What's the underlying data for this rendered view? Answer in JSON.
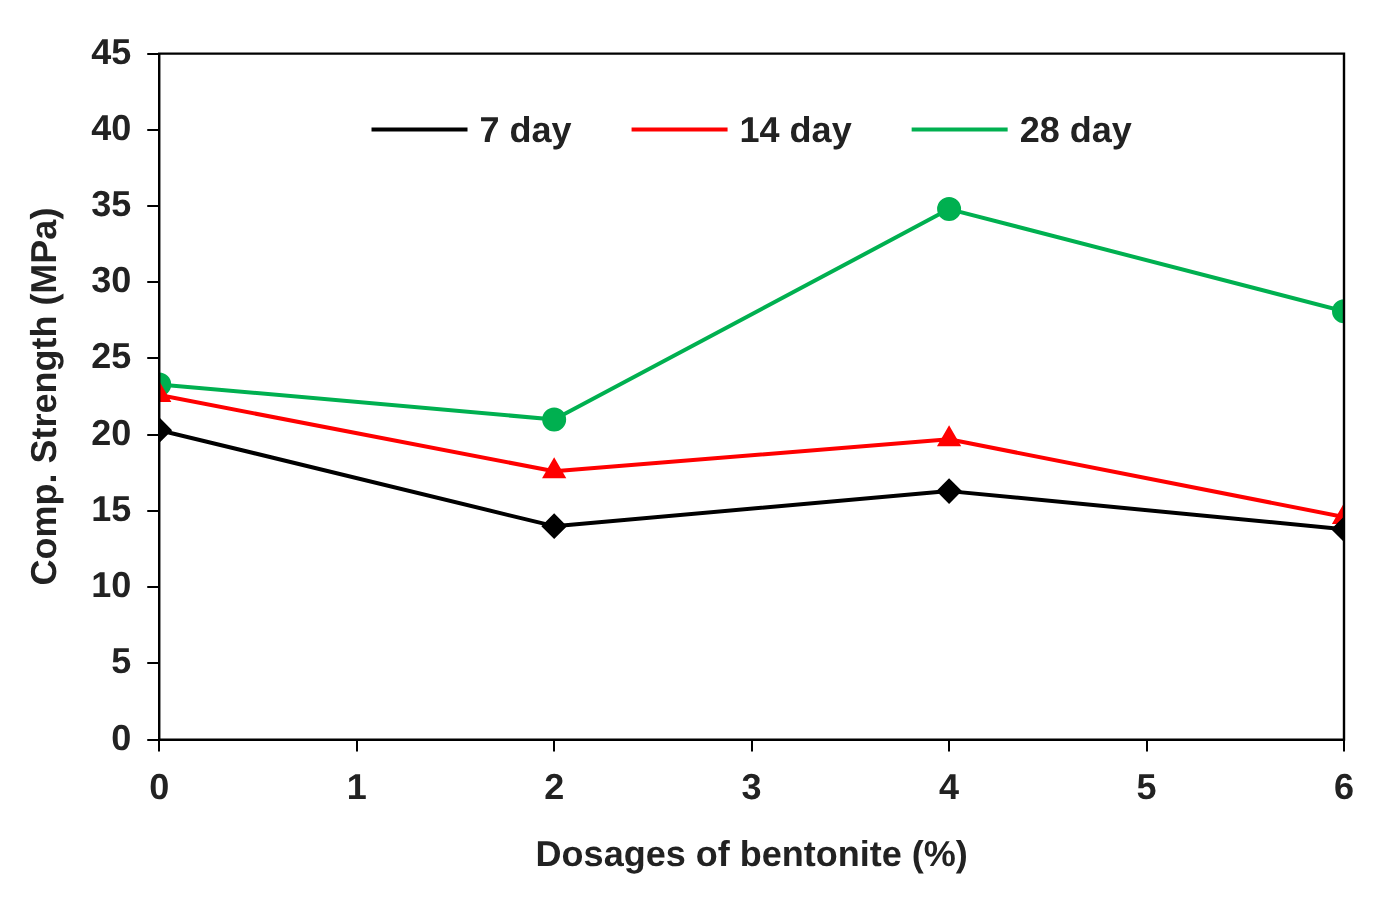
{
  "chart_data": {
    "type": "line",
    "xlabel": "Dosages of bentonite (%)",
    "ylabel": "Comp. Strength (MPa)",
    "x": [
      0,
      2,
      4,
      6
    ],
    "xlim": [
      0,
      6
    ],
    "xticks": [
      0,
      1,
      2,
      3,
      4,
      5,
      6
    ],
    "ylim": [
      0,
      45
    ],
    "yticks": [
      0,
      5,
      10,
      15,
      20,
      25,
      30,
      35,
      40,
      45
    ],
    "grid": false,
    "legend": "top",
    "line_style": "solid",
    "series": [
      {
        "name": "7 day",
        "color": "#000000",
        "marker": "diamond",
        "values": [
          20.3,
          14.0,
          16.3,
          13.8
        ]
      },
      {
        "name": "14 day",
        "color": "#ff0000",
        "marker": "triangle",
        "values": [
          22.6,
          17.6,
          19.7,
          14.6
        ]
      },
      {
        "name": "28 day",
        "color": "#00b050",
        "marker": "circle",
        "values": [
          23.3,
          21.0,
          34.8,
          28.1
        ]
      }
    ]
  }
}
